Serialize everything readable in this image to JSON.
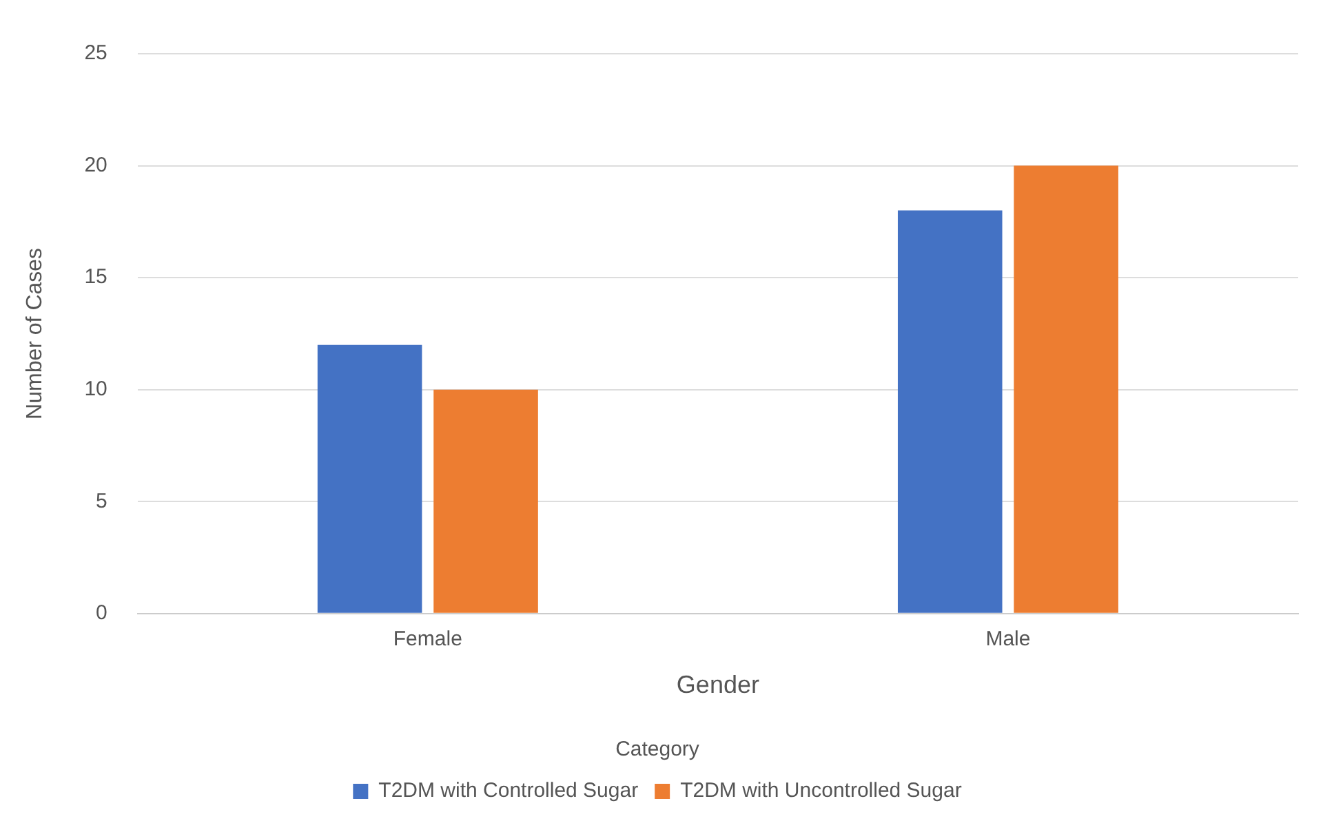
{
  "chart_data": {
    "type": "bar",
    "xlabel": "Gender",
    "ylabel": "Number of Cases",
    "legend_title": "Category",
    "categories": [
      "Female",
      "Male"
    ],
    "series": [
      {
        "name": "T2DM with Controlled Sugar",
        "color": "#4472c4",
        "values": [
          12,
          18
        ]
      },
      {
        "name": "T2DM with Uncontrolled Sugar",
        "color": "#ed7d31",
        "values": [
          10,
          20
        ]
      }
    ],
    "ylim": [
      0,
      25
    ],
    "yticks": [
      0,
      5,
      10,
      15,
      20,
      25
    ],
    "grid": "y",
    "legend": "bottom"
  }
}
